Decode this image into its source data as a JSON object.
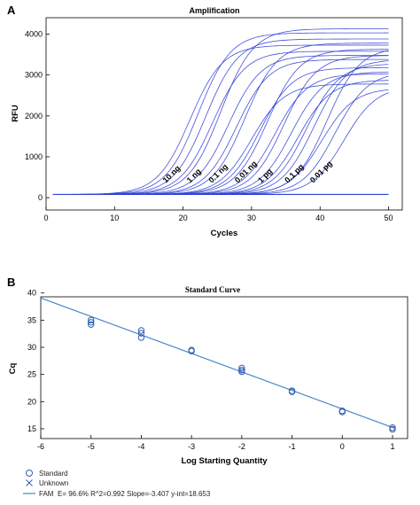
{
  "chart_data": [
    {
      "panel": "A",
      "type": "line",
      "title": "Amplification",
      "xlabel": "Cycles",
      "ylabel": "RFU",
      "xlim": [
        0,
        52
      ],
      "ylim": [
        -300,
        4400
      ],
      "xticks": [
        0,
        10,
        20,
        30,
        40,
        50
      ],
      "yticks": [
        0,
        1000,
        2000,
        3000,
        4000
      ],
      "baseline": 80,
      "grid": false,
      "line_color": "#2d3fd6",
      "series": [
        {
          "label": "10 ng",
          "midpoints": [
            21.0,
            22.2,
            23.3
          ],
          "plateaus": [
            3650,
            3950,
            3800
          ]
        },
        {
          "label": "1 ng",
          "midpoints": [
            24.3,
            25.5,
            26.6
          ],
          "plateaus": [
            3500,
            4050,
            3400
          ]
        },
        {
          "label": "0.1 ng",
          "midpoints": [
            27.8,
            29.0,
            30.0
          ],
          "plateaus": [
            3300,
            3700,
            2700
          ]
        },
        {
          "label": "0.01 ng",
          "midpoints": [
            31.2,
            32.3,
            33.4
          ],
          "plateaus": [
            3100,
            3550,
            2950
          ]
        },
        {
          "label": "1 pg",
          "midpoints": [
            34.7,
            35.8,
            36.8
          ],
          "plateaus": [
            3400,
            3000,
            2800
          ]
        },
        {
          "label": "0.1 pg",
          "midpoints": [
            38.0,
            39.1,
            40.2
          ],
          "plateaus": [
            3200,
            3300,
            2600
          ]
        },
        {
          "label": "0.01 pg",
          "midpoints": [
            41.0,
            42.2,
            43.5
          ],
          "plateaus": [
            3600,
            3000,
            2650
          ]
        }
      ],
      "curve_labels": [
        {
          "text": "10 ng",
          "x": 17.5,
          "y": 350
        },
        {
          "text": "1 ng",
          "x": 21.0,
          "y": 350
        },
        {
          "text": "0.1 ng",
          "x": 24.2,
          "y": 350
        },
        {
          "text": "0.01 ng",
          "x": 28.0,
          "y": 350
        },
        {
          "text": "1 pg",
          "x": 31.4,
          "y": 350
        },
        {
          "text": "0.1 pg",
          "x": 35.3,
          "y": 350
        },
        {
          "text": "0.01 pg",
          "x": 39.0,
          "y": 350
        }
      ]
    },
    {
      "panel": "B",
      "type": "scatter",
      "title": "Standard Curve",
      "xlabel": "Log Starting Quantity",
      "ylabel": "Cq",
      "xlim": [
        -6,
        1.3
      ],
      "ylim": [
        13.2,
        39.3
      ],
      "xticks": [
        -6,
        -5,
        -4,
        -3,
        -2,
        -1,
        0,
        1
      ],
      "yticks": [
        15,
        20,
        25,
        30,
        35,
        40
      ],
      "grid": false,
      "points": [
        {
          "x": -5,
          "y": 35.0
        },
        {
          "x": -5,
          "y": 34.6
        },
        {
          "x": -5,
          "y": 34.2
        },
        {
          "x": -4,
          "y": 33.1
        },
        {
          "x": -4,
          "y": 32.6
        },
        {
          "x": -4,
          "y": 31.8
        },
        {
          "x": -3,
          "y": 29.5
        },
        {
          "x": -3,
          "y": 29.3
        },
        {
          "x": -2,
          "y": 26.2
        },
        {
          "x": -2,
          "y": 25.8
        },
        {
          "x": -2,
          "y": 25.5
        },
        {
          "x": -1,
          "y": 22.0
        },
        {
          "x": -1,
          "y": 21.8
        },
        {
          "x": 0,
          "y": 18.3
        },
        {
          "x": 0,
          "y": 18.1
        },
        {
          "x": 1,
          "y": 15.2
        },
        {
          "x": 1,
          "y": 14.9
        }
      ],
      "fit": {
        "slope": -3.407,
        "intercept": 18.653
      },
      "legend": {
        "standard": "Standard",
        "unknown": "Unknown",
        "fam_name": "FAM",
        "fam_stats": "E= 96.6% R^2=0.992 Slope=-3.407 y-int=18.653"
      }
    }
  ]
}
